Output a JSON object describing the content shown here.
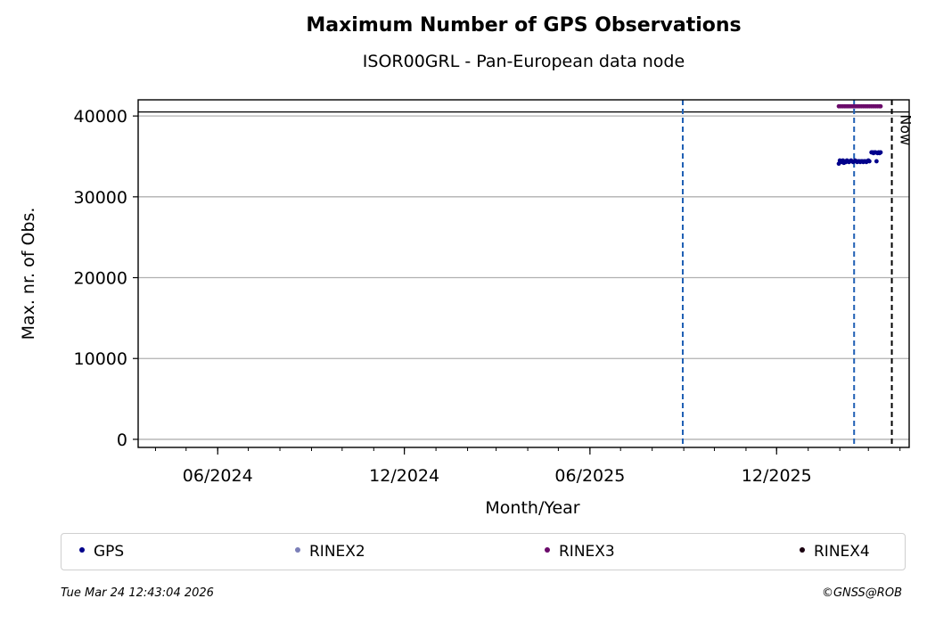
{
  "chart_data": {
    "type": "scatter",
    "title": "Maximum Number of GPS Observations",
    "subtitle": "ISOR00GRL - Pan-European data node",
    "xlabel": "Month/Year",
    "ylabel": "Max. nr. of Obs.",
    "x_tick_labels": [
      "06/2024",
      "12/2024",
      "06/2025",
      "12/2025"
    ],
    "x_range": [
      "2024-03-15",
      "2026-04-10"
    ],
    "y_ticks": [
      0,
      10000,
      20000,
      30000,
      40000
    ],
    "ylim": [
      -1000,
      42000
    ],
    "grid": "horizontal",
    "reference_line_y": 40500,
    "vertical_markers": [
      {
        "date": "2025-08-31",
        "style": "dashed",
        "color": "#1f5fb4"
      },
      {
        "date": "2026-02-15",
        "style": "dashed",
        "color": "#1f5fb4"
      },
      {
        "date": "2026-03-24",
        "style": "dashed",
        "color": "#000000",
        "label": "Now"
      }
    ],
    "series": [
      {
        "name": "GPS",
        "color": "#00008b",
        "points": [
          [
            "2026-01-31",
            34100
          ],
          [
            "2026-02-01",
            34500
          ],
          [
            "2026-02-02",
            34400
          ],
          [
            "2026-02-03",
            34300
          ],
          [
            "2026-02-04",
            34500
          ],
          [
            "2026-02-05",
            34200
          ],
          [
            "2026-02-06",
            34400
          ],
          [
            "2026-02-07",
            34300
          ],
          [
            "2026-02-08",
            34500
          ],
          [
            "2026-02-09",
            34400
          ],
          [
            "2026-02-10",
            34300
          ],
          [
            "2026-02-11",
            34400
          ],
          [
            "2026-02-12",
            34500
          ],
          [
            "2026-02-13",
            34400
          ],
          [
            "2026-02-14",
            34300
          ],
          [
            "2026-02-15",
            34400
          ],
          [
            "2026-02-16",
            34500
          ],
          [
            "2026-02-17",
            34400
          ],
          [
            "2026-02-18",
            34300
          ],
          [
            "2026-02-19",
            34400
          ],
          [
            "2026-02-20",
            34400
          ],
          [
            "2026-02-21",
            34300
          ],
          [
            "2026-02-22",
            34400
          ],
          [
            "2026-02-23",
            34400
          ],
          [
            "2026-02-24",
            34300
          ],
          [
            "2026-02-25",
            34400
          ],
          [
            "2026-02-26",
            34400
          ],
          [
            "2026-02-27",
            34300
          ],
          [
            "2026-02-28",
            34400
          ],
          [
            "2026-03-01",
            34500
          ],
          [
            "2026-03-02",
            34400
          ],
          [
            "2026-03-04",
            35500
          ],
          [
            "2026-03-05",
            35500
          ],
          [
            "2026-03-06",
            35400
          ],
          [
            "2026-03-07",
            35500
          ],
          [
            "2026-03-08",
            35500
          ],
          [
            "2026-03-09",
            34400
          ],
          [
            "2026-03-10",
            35400
          ],
          [
            "2026-03-11",
            35500
          ],
          [
            "2026-03-12",
            35400
          ],
          [
            "2026-03-13",
            35500
          ]
        ]
      },
      {
        "name": "RINEX2",
        "color": "#7b7fb8",
        "points": []
      },
      {
        "name": "RINEX3",
        "color": "#6a0a6a",
        "points": [
          [
            "2026-01-31",
            41200
          ],
          [
            "2026-02-02",
            41200
          ],
          [
            "2026-02-04",
            41200
          ],
          [
            "2026-02-06",
            41200
          ],
          [
            "2026-02-08",
            41200
          ],
          [
            "2026-02-10",
            41200
          ],
          [
            "2026-02-12",
            41200
          ],
          [
            "2026-02-14",
            41200
          ],
          [
            "2026-02-16",
            41200
          ],
          [
            "2026-02-18",
            41200
          ],
          [
            "2026-02-20",
            41200
          ],
          [
            "2026-02-22",
            41200
          ],
          [
            "2026-02-24",
            41200
          ],
          [
            "2026-02-26",
            41200
          ],
          [
            "2026-02-28",
            41200
          ],
          [
            "2026-03-02",
            41200
          ],
          [
            "2026-03-04",
            41200
          ],
          [
            "2026-03-06",
            41200
          ],
          [
            "2026-03-08",
            41200
          ],
          [
            "2026-03-10",
            41200
          ],
          [
            "2026-03-12",
            41200
          ],
          [
            "2026-03-13",
            41200
          ]
        ]
      },
      {
        "name": "RINEX4",
        "color": "#1a0010",
        "points": []
      }
    ]
  },
  "footer": {
    "timestamp": "Tue Mar 24 12:43:04 2026",
    "credit": "©GNSS@ROB"
  }
}
